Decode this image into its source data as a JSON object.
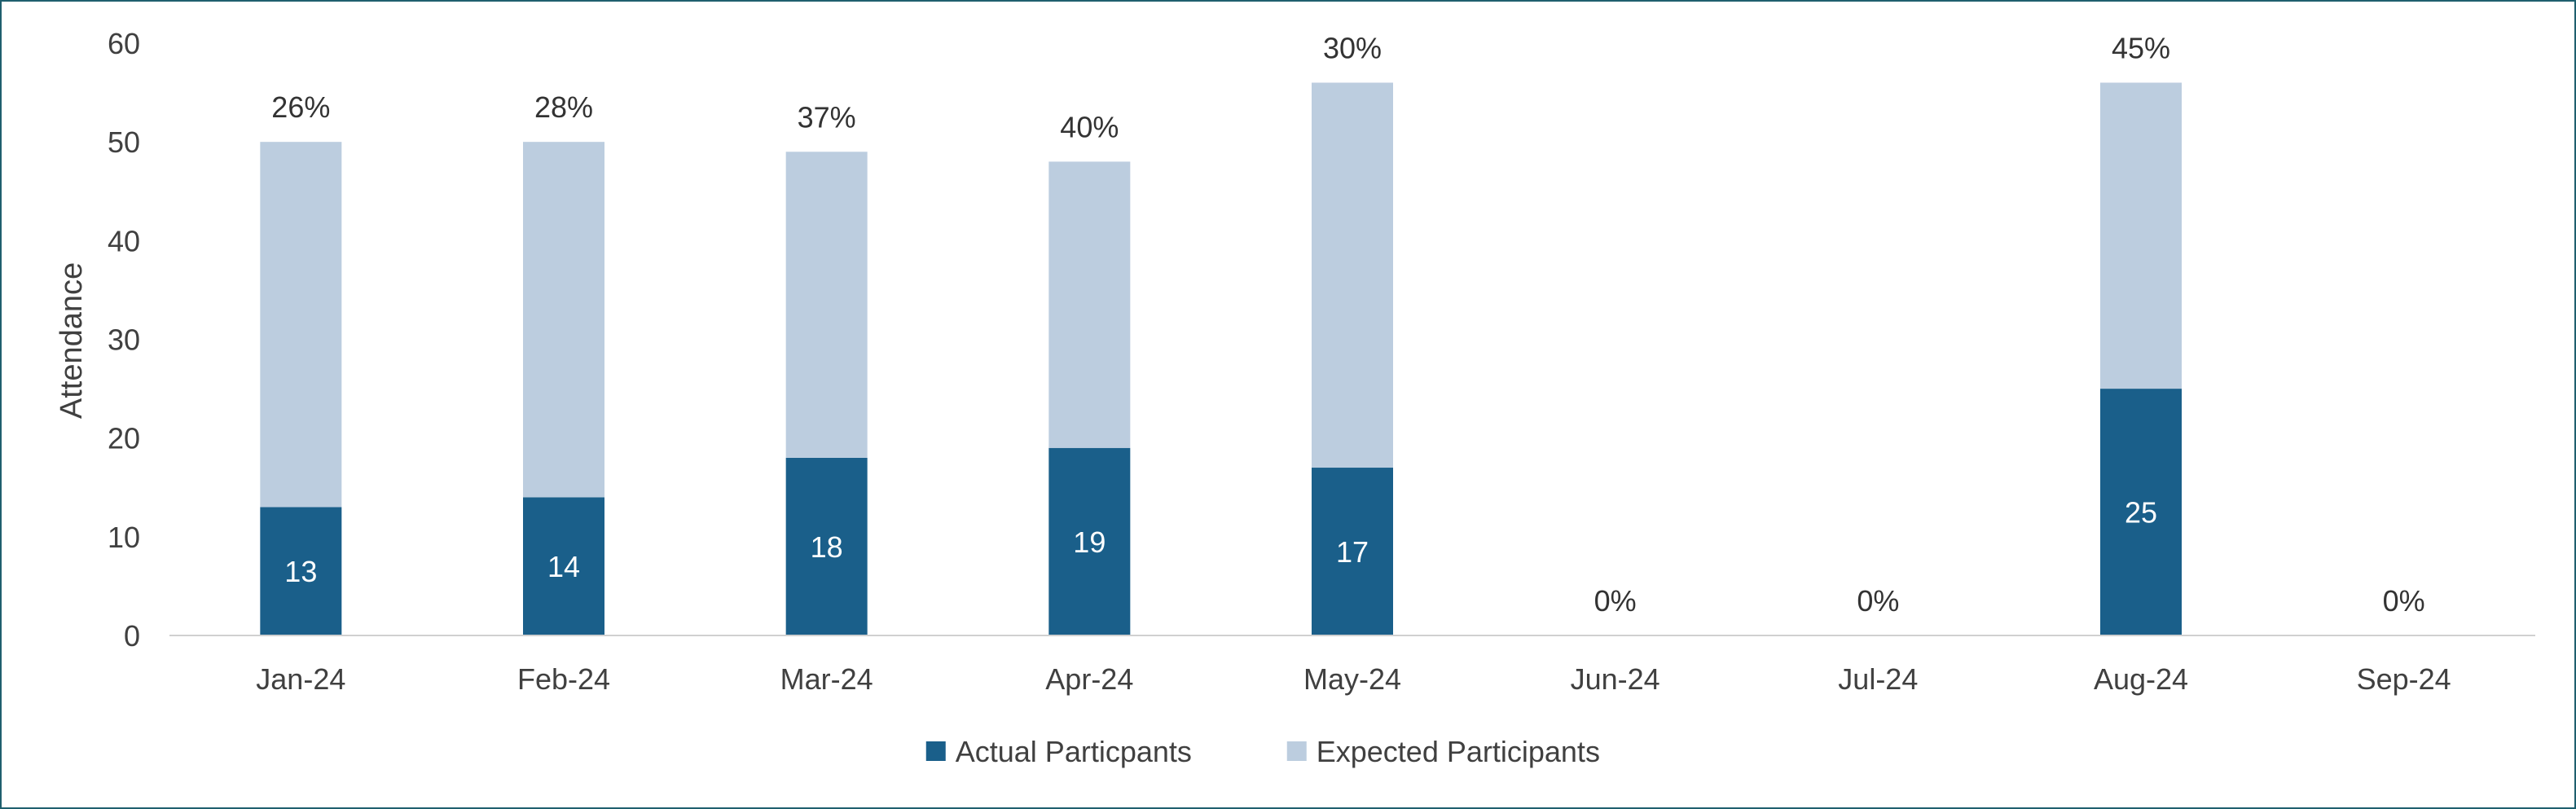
{
  "chart_data": {
    "type": "bar",
    "stacked": true,
    "categories": [
      "Jan-24",
      "Feb-24",
      "Mar-24",
      "Apr-24",
      "May-24",
      "Jun-24",
      "Jul-24",
      "Aug-24",
      "Sep-24"
    ],
    "series": [
      {
        "name": "Actual Particpants",
        "color": "#1a5f8a",
        "values": [
          13,
          14,
          18,
          19,
          17,
          0,
          0,
          25,
          0
        ]
      },
      {
        "name": "Expected Participants",
        "color": "#bccddf",
        "values": [
          37,
          36,
          31,
          29,
          39,
          0,
          0,
          31,
          0
        ]
      }
    ],
    "value_labels": [
      "13",
      "14",
      "18",
      "19",
      "17",
      "",
      "",
      "25",
      ""
    ],
    "percent_labels": [
      "26%",
      "28%",
      "37%",
      "40%",
      "30%",
      "0%",
      "0%",
      "45%",
      "0%"
    ],
    "title": "",
    "xlabel": "",
    "ylabel": "Attendance",
    "ylim": [
      0,
      60
    ],
    "yticks": [
      0,
      10,
      20,
      30,
      40,
      50,
      60
    ],
    "grid": false,
    "legend_position": "bottom"
  }
}
